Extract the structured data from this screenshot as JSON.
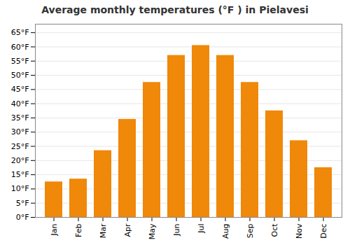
{
  "chart_data": {
    "type": "bar",
    "title": "Average monthly temperatures (°F ) in Pielavesi",
    "categories": [
      "Jan",
      "Feb",
      "Mar",
      "Apr",
      "May",
      "Jun",
      "Jul",
      "Aug",
      "Sep",
      "Oct",
      "Nov",
      "Dec"
    ],
    "values": [
      12.5,
      13.5,
      23.5,
      34.5,
      47.5,
      57.0,
      60.5,
      57.0,
      47.5,
      37.5,
      27.0,
      17.5
    ],
    "color": "#F0880A",
    "ylim": [
      0,
      68
    ],
    "yticks": [
      {
        "value": 0,
        "label": "0°F"
      },
      {
        "value": 5,
        "label": "5°F"
      },
      {
        "value": 10,
        "label": "10°F"
      },
      {
        "value": 15,
        "label": "15°F"
      },
      {
        "value": 20,
        "label": "20°F"
      },
      {
        "value": 25,
        "label": "25°F"
      },
      {
        "value": 30,
        "label": "30°F"
      },
      {
        "value": 35,
        "label": "35°F"
      },
      {
        "value": 40,
        "label": "40°F"
      },
      {
        "value": 45,
        "label": "45°F"
      },
      {
        "value": 50,
        "label": "50°F"
      },
      {
        "value": 55,
        "label": "55°F"
      },
      {
        "value": 60,
        "label": "60°F"
      },
      {
        "value": 65,
        "label": "65°F"
      }
    ],
    "grid": true
  }
}
